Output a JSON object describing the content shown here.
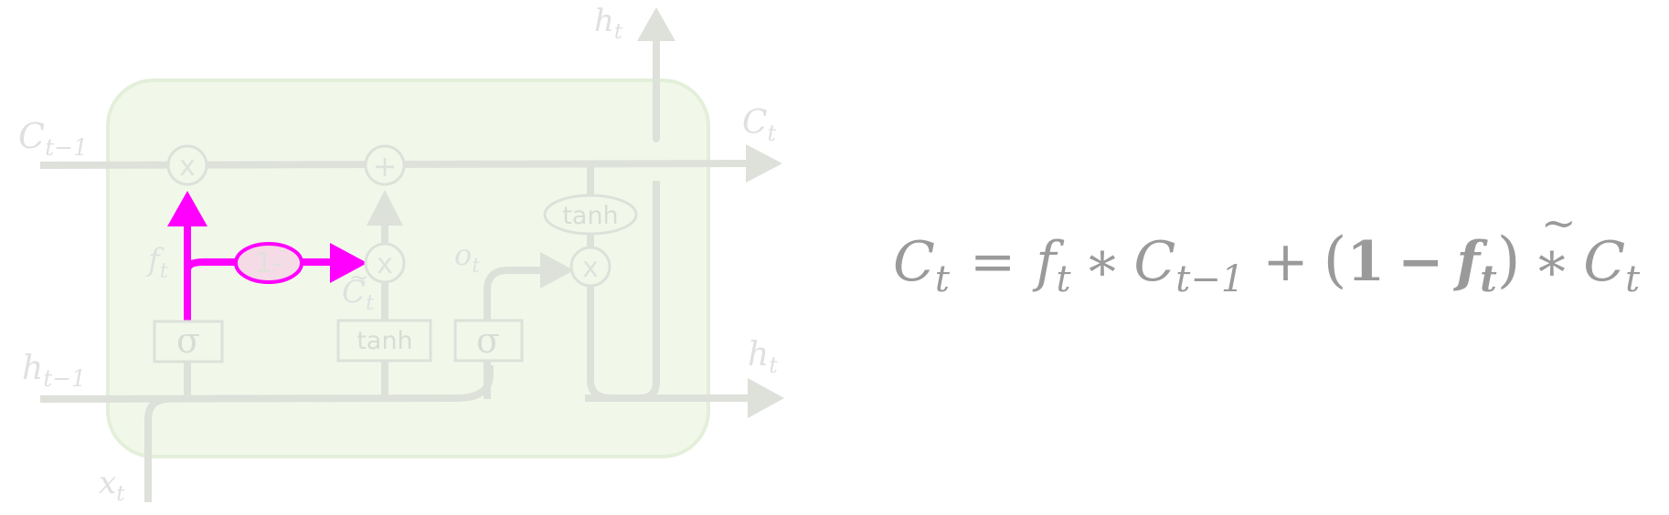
{
  "diagram": {
    "labels": {
      "h_top": "h",
      "h_top_sub": "t",
      "c_prev": "C",
      "c_prev_sub": "t−1",
      "c_out": "C",
      "c_out_sub": "t",
      "h_prev": "h",
      "h_prev_sub": "t−1",
      "h_out": "h",
      "h_out_sub": "t",
      "x": "x",
      "x_sub": "t",
      "f": "f",
      "f_sub": "t",
      "o": "o",
      "o_sub": "t",
      "c_tilde": "C",
      "c_tilde_mark": "~",
      "c_tilde_sub": "t"
    },
    "operators": {
      "forget_mult": "x",
      "add": "+",
      "input_mult": "x",
      "output_mult": "x",
      "one_minus": "1-"
    },
    "gates": {
      "sigma_forget": "σ",
      "tanh_candidate": "tanh",
      "sigma_output": "σ",
      "tanh_cell": "tanh"
    }
  },
  "equation": {
    "lhs": "C",
    "lhs_sub": "t",
    "eq": "=",
    "f": "f",
    "f_sub": "t",
    "times1": "∗",
    "c_prev": "C",
    "c_prev_sub": "t−1",
    "plus": "+",
    "paren_open": "(",
    "one": "1",
    "minus": "−",
    "f2": "f",
    "f2_sub": "t",
    "paren_close": ")",
    "times2": "∗",
    "c_tilde": "C",
    "c_tilde_mark": "~",
    "c_tilde_sub": "t"
  },
  "colors": {
    "highlight": "#ff00ff",
    "faded_line": "#dde1da",
    "cell_fill": "#f1f8ea",
    "cell_border": "#e4efda",
    "one_minus_fill": "#f5dbe6",
    "equation_text": "#9a9a9a"
  }
}
